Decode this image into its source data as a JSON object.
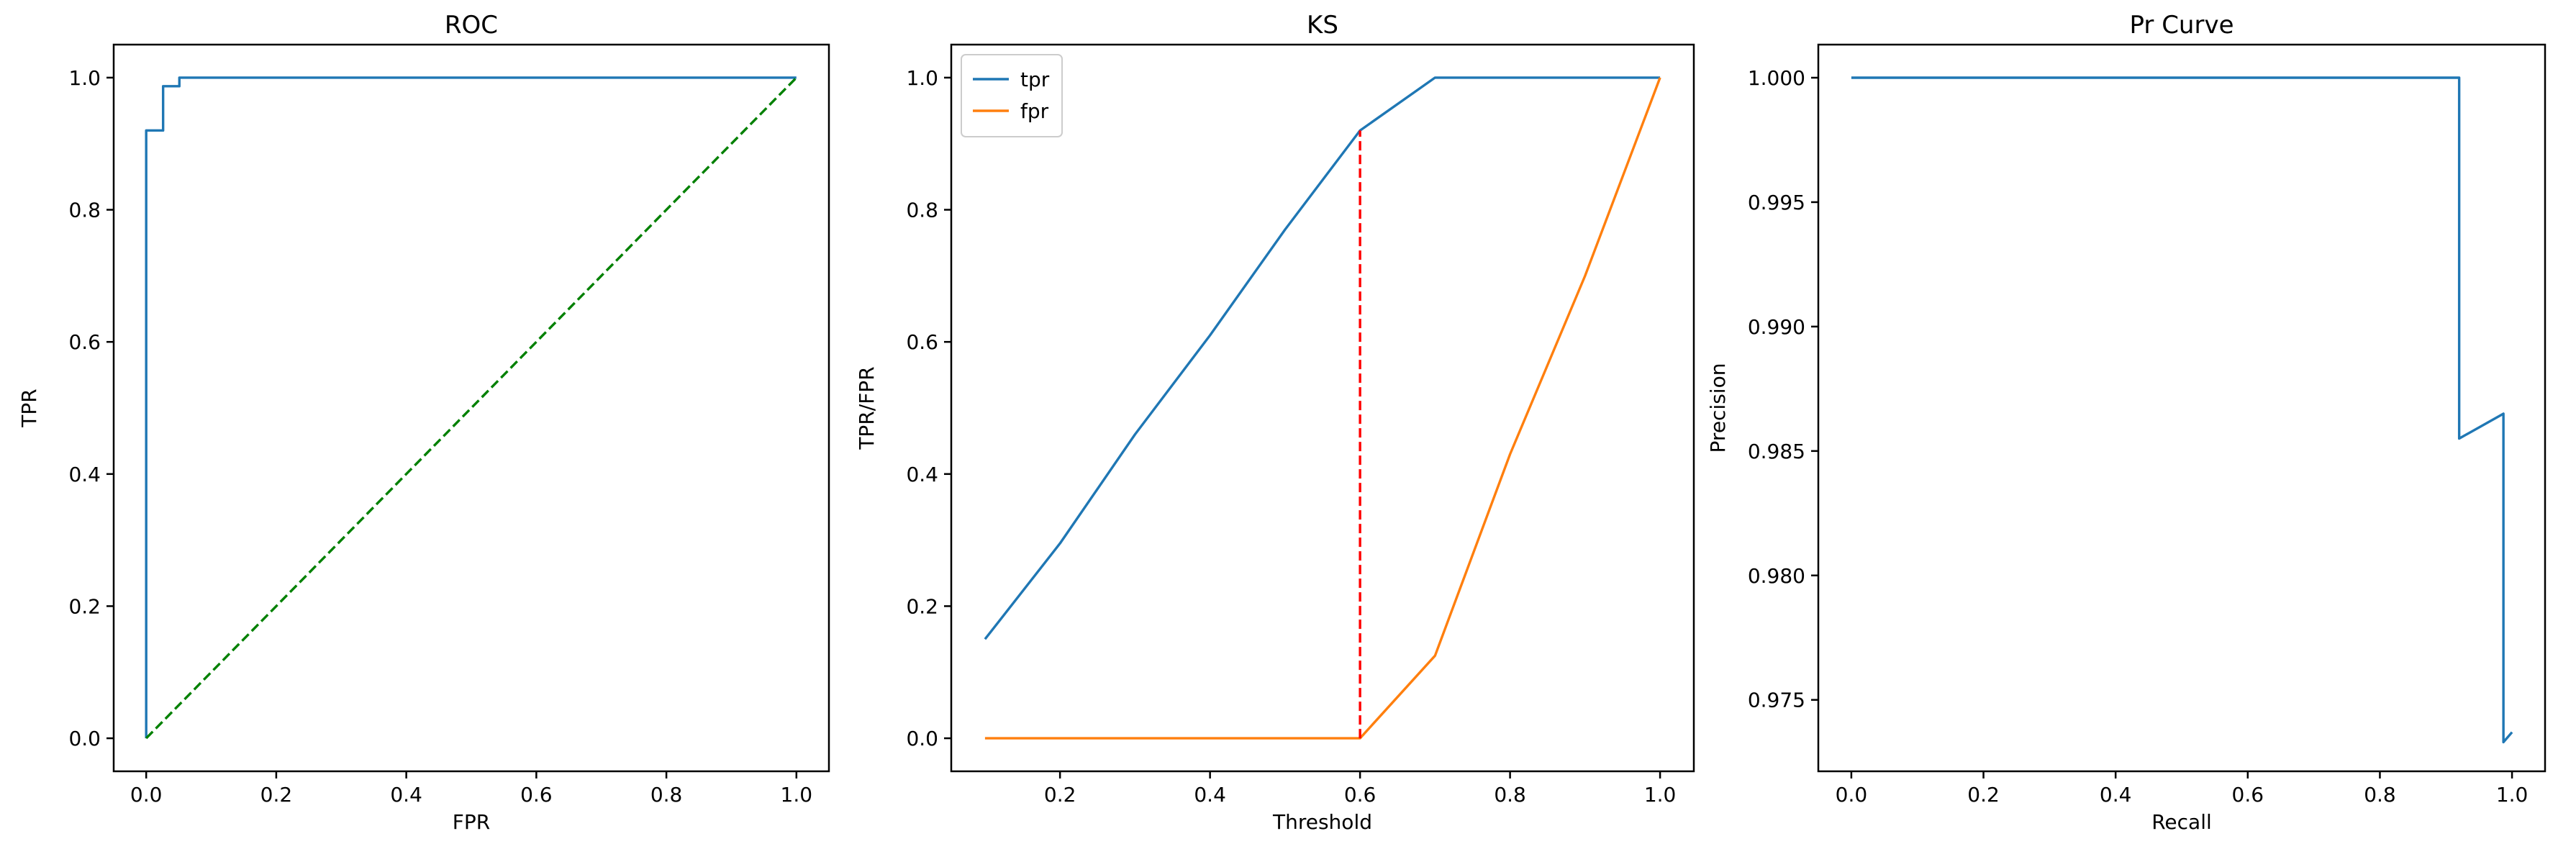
{
  "chart_data": [
    {
      "type": "line",
      "title": "ROC",
      "xlabel": "FPR",
      "ylabel": "TPR",
      "xlim": [
        -0.05,
        1.05
      ],
      "ylim": [
        -0.05,
        1.05
      ],
      "xticks": [
        0.0,
        0.2,
        0.4,
        0.6,
        0.8,
        1.0
      ],
      "xtick_labels": [
        "0.0",
        "0.2",
        "0.4",
        "0.6",
        "0.8",
        "1.0"
      ],
      "yticks": [
        0.0,
        0.2,
        0.4,
        0.6,
        0.8,
        1.0
      ],
      "ytick_labels": [
        "0.0",
        "0.2",
        "0.4",
        "0.6",
        "0.8",
        "1.0"
      ],
      "legend": null,
      "grid": false,
      "series": [
        {
          "color": "#1f77b4",
          "style": "solid",
          "x": [
            0.0,
            0.0,
            0.0,
            0.026,
            0.026,
            0.051,
            0.051,
            1.0
          ],
          "y": [
            0.0,
            0.01,
            0.92,
            0.92,
            0.987,
            0.987,
            1.0,
            1.0
          ]
        },
        {
          "color": "#008000",
          "style": "dashed",
          "x": [
            0.0,
            1.0
          ],
          "y": [
            0.0,
            1.0
          ]
        }
      ]
    },
    {
      "type": "line",
      "title": "KS",
      "xlabel": "Threshold",
      "ylabel": "TPR/FPR",
      "xlim": [
        0.055,
        1.045
      ],
      "ylim": [
        -0.05,
        1.05
      ],
      "xticks": [
        0.2,
        0.4,
        0.6,
        0.8,
        1.0
      ],
      "xtick_labels": [
        "0.2",
        "0.4",
        "0.6",
        "0.8",
        "1.0"
      ],
      "yticks": [
        0.0,
        0.2,
        0.4,
        0.6,
        0.8,
        1.0
      ],
      "ytick_labels": [
        "0.0",
        "0.2",
        "0.4",
        "0.6",
        "0.8",
        "1.0"
      ],
      "legend": "top-left",
      "grid": false,
      "series": [
        {
          "name": "tpr",
          "color": "#1f77b4",
          "style": "solid",
          "x": [
            0.1,
            0.2,
            0.3,
            0.4,
            0.5,
            0.6,
            0.7,
            0.8,
            0.9,
            1.0
          ],
          "y": [
            0.15,
            0.295,
            0.46,
            0.61,
            0.77,
            0.92,
            1.0,
            1.0,
            1.0,
            1.0
          ]
        },
        {
          "name": "fpr",
          "color": "#ff7f0e",
          "style": "solid",
          "x": [
            0.1,
            0.2,
            0.3,
            0.4,
            0.5,
            0.6,
            0.7,
            0.8,
            0.9,
            1.0
          ],
          "y": [
            0.0,
            0.0,
            0.0,
            0.0,
            0.0,
            0.0,
            0.125,
            0.43,
            0.7,
            1.0
          ]
        },
        {
          "color": "#ff0000",
          "style": "dashed",
          "x": [
            0.6,
            0.6
          ],
          "y": [
            0.0,
            0.92
          ]
        }
      ]
    },
    {
      "type": "line",
      "title": "Pr Curve",
      "xlabel": "Recall",
      "ylabel": "Precision",
      "xlim": [
        -0.05,
        1.05
      ],
      "ylim": [
        0.97213,
        1.00133
      ],
      "xticks": [
        0.0,
        0.2,
        0.4,
        0.6,
        0.8,
        1.0
      ],
      "xtick_labels": [
        "0.0",
        "0.2",
        "0.4",
        "0.6",
        "0.8",
        "1.0"
      ],
      "yticks": [
        0.975,
        0.98,
        0.985,
        0.99,
        0.995,
        1.0
      ],
      "ytick_labels": [
        "0.975",
        "0.980",
        "0.985",
        "0.990",
        "0.995",
        "1.000"
      ],
      "legend": null,
      "grid": false,
      "series": [
        {
          "color": "#1f77b4",
          "style": "solid",
          "x": [
            0.0,
            0.92,
            0.92,
            0.987,
            0.987,
            1.0
          ],
          "y": [
            1.0,
            1.0,
            0.9855,
            0.9865,
            0.9733,
            0.9737
          ]
        }
      ]
    }
  ]
}
